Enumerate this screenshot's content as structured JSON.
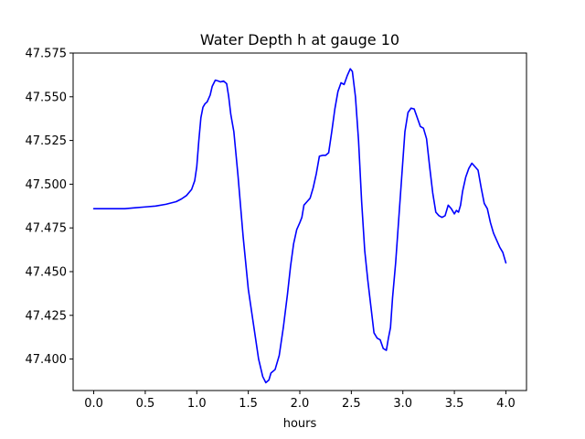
{
  "chart_data": {
    "type": "line",
    "title": "Water Depth h at gauge 10",
    "xlabel": "hours",
    "ylabel": "",
    "xlim": [
      -0.2,
      4.2
    ],
    "ylim": [
      47.382,
      47.575
    ],
    "xticks": [
      0.0,
      0.5,
      1.0,
      1.5,
      2.0,
      2.5,
      3.0,
      3.5,
      4.0
    ],
    "xtick_labels": [
      "0.0",
      "0.5",
      "1.0",
      "1.5",
      "2.0",
      "2.5",
      "3.0",
      "3.5",
      "4.0"
    ],
    "yticks": [
      47.4,
      47.425,
      47.45,
      47.475,
      47.5,
      47.525,
      47.55,
      47.575
    ],
    "ytick_labels": [
      "47.400",
      "47.425",
      "47.450",
      "47.475",
      "47.500",
      "47.525",
      "47.550",
      "47.575"
    ],
    "grid": false,
    "series": [
      {
        "color": "#0000ff",
        "x": [
          0.0,
          0.1,
          0.2,
          0.3,
          0.4,
          0.5,
          0.6,
          0.7,
          0.8,
          0.85,
          0.9,
          0.95,
          0.98,
          1.0,
          1.02,
          1.04,
          1.06,
          1.08,
          1.1,
          1.13,
          1.15,
          1.18,
          1.21,
          1.23,
          1.26,
          1.29,
          1.31,
          1.33,
          1.36,
          1.4,
          1.45,
          1.5,
          1.55,
          1.6,
          1.64,
          1.67,
          1.7,
          1.72,
          1.76,
          1.8,
          1.84,
          1.88,
          1.91,
          1.94,
          1.97,
          2.0,
          2.02,
          2.04,
          2.07,
          2.1,
          2.13,
          2.16,
          2.19,
          2.22,
          2.25,
          2.28,
          2.31,
          2.34,
          2.37,
          2.4,
          2.43,
          2.46,
          2.49,
          2.51,
          2.54,
          2.57,
          2.6,
          2.63,
          2.66,
          2.69,
          2.72,
          2.75,
          2.78,
          2.81,
          2.84,
          2.86,
          2.88,
          2.9,
          2.93,
          2.96,
          2.99,
          3.02,
          3.05,
          3.08,
          3.11,
          3.14,
          3.17,
          3.2,
          3.23,
          3.26,
          3.29,
          3.32,
          3.35,
          3.38,
          3.41,
          3.44,
          3.47,
          3.5,
          3.52,
          3.54,
          3.56,
          3.58,
          3.61,
          3.64,
          3.67,
          3.7,
          3.73,
          3.76,
          3.79,
          3.82,
          3.85,
          3.88,
          3.91,
          3.94,
          3.97,
          4.0
        ],
        "y": [
          47.486,
          47.486,
          47.486,
          47.486,
          47.4865,
          47.487,
          47.4875,
          47.4885,
          47.49,
          47.4915,
          47.4935,
          47.497,
          47.502,
          47.51,
          47.525,
          47.538,
          47.544,
          47.546,
          47.547,
          47.551,
          47.556,
          47.5595,
          47.559,
          47.5585,
          47.559,
          47.5575,
          47.55,
          47.54,
          47.53,
          47.505,
          47.47,
          47.44,
          47.42,
          47.4,
          47.39,
          47.3865,
          47.388,
          47.392,
          47.394,
          47.402,
          47.418,
          47.437,
          47.453,
          47.466,
          47.474,
          47.478,
          47.481,
          47.488,
          47.49,
          47.492,
          47.498,
          47.506,
          47.516,
          47.5165,
          47.5165,
          47.518,
          47.53,
          47.543,
          47.553,
          47.558,
          47.557,
          47.562,
          47.566,
          47.5645,
          47.55,
          47.525,
          47.49,
          47.462,
          47.445,
          47.43,
          47.415,
          47.412,
          47.411,
          47.406,
          47.405,
          47.412,
          47.418,
          47.435,
          47.455,
          47.48,
          47.505,
          47.53,
          47.541,
          47.5435,
          47.543,
          47.538,
          47.533,
          47.532,
          47.526,
          47.51,
          47.495,
          47.484,
          47.482,
          47.481,
          47.482,
          47.488,
          47.486,
          47.483,
          47.485,
          47.484,
          47.488,
          47.496,
          47.504,
          47.509,
          47.512,
          47.51,
          47.508,
          47.498,
          47.489,
          47.486,
          47.478,
          47.472,
          47.468,
          47.464,
          47.461,
          47.455
        ]
      }
    ]
  }
}
